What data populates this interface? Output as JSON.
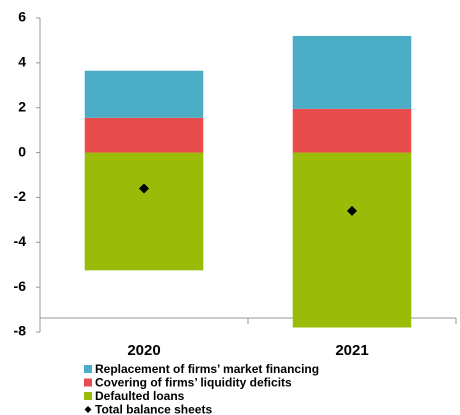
{
  "chart_data": {
    "type": "stacked_bar",
    "categories": [
      "2020",
      "2021"
    ],
    "series": [
      {
        "name": "Replacement of firms’ market financing",
        "color": "#4bacc6",
        "values": [
          2.1,
          3.25
        ]
      },
      {
        "name": "Covering of firms’ liquidity deficits",
        "color": "#e84c4c",
        "values": [
          1.55,
          1.95
        ]
      },
      {
        "name": "Defaulted loans",
        "color": "#9bbb09",
        "values": [
          -5.25,
          -7.8
        ]
      },
      {
        "name": "Total balance sheets",
        "color": "#000000",
        "type": "point",
        "values": [
          -1.6,
          -2.6
        ]
      }
    ],
    "ylim": [
      -8,
      6
    ],
    "yticks": [
      -8,
      -6,
      -4,
      -2,
      0,
      2,
      4,
      6
    ],
    "grid": false
  }
}
